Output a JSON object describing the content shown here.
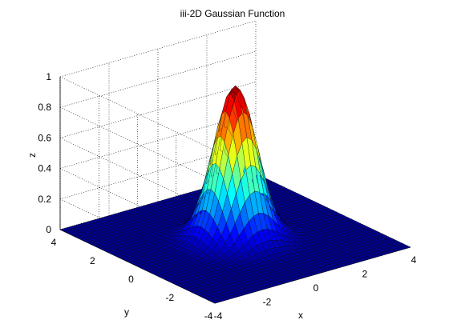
{
  "chart_data": {
    "type": "surface",
    "title": "iii-2D Gaussian Function",
    "xlabel": "x",
    "ylabel": "y",
    "zlabel": "z",
    "xlim": [
      -4,
      4
    ],
    "ylim": [
      -4,
      4
    ],
    "zlim": [
      0,
      1
    ],
    "x_ticks": [
      "-4",
      "-2",
      "0",
      "2",
      "4"
    ],
    "y_ticks": [
      "-4",
      "-2",
      "0",
      "2",
      "4"
    ],
    "z_ticks": [
      "0",
      "0.2",
      "0.4",
      "0.6",
      "0.8",
      "1"
    ],
    "function": "z = exp(-(x^2 + y^2))",
    "grid_points": 41,
    "peak": {
      "x": 0,
      "y": 0,
      "z": 1
    },
    "grid": "on",
    "colormap": "jet",
    "colormap_colors": [
      "#00008f",
      "#0000ff",
      "#00ffff",
      "#ffff00",
      "#ff0000",
      "#800000"
    ]
  }
}
